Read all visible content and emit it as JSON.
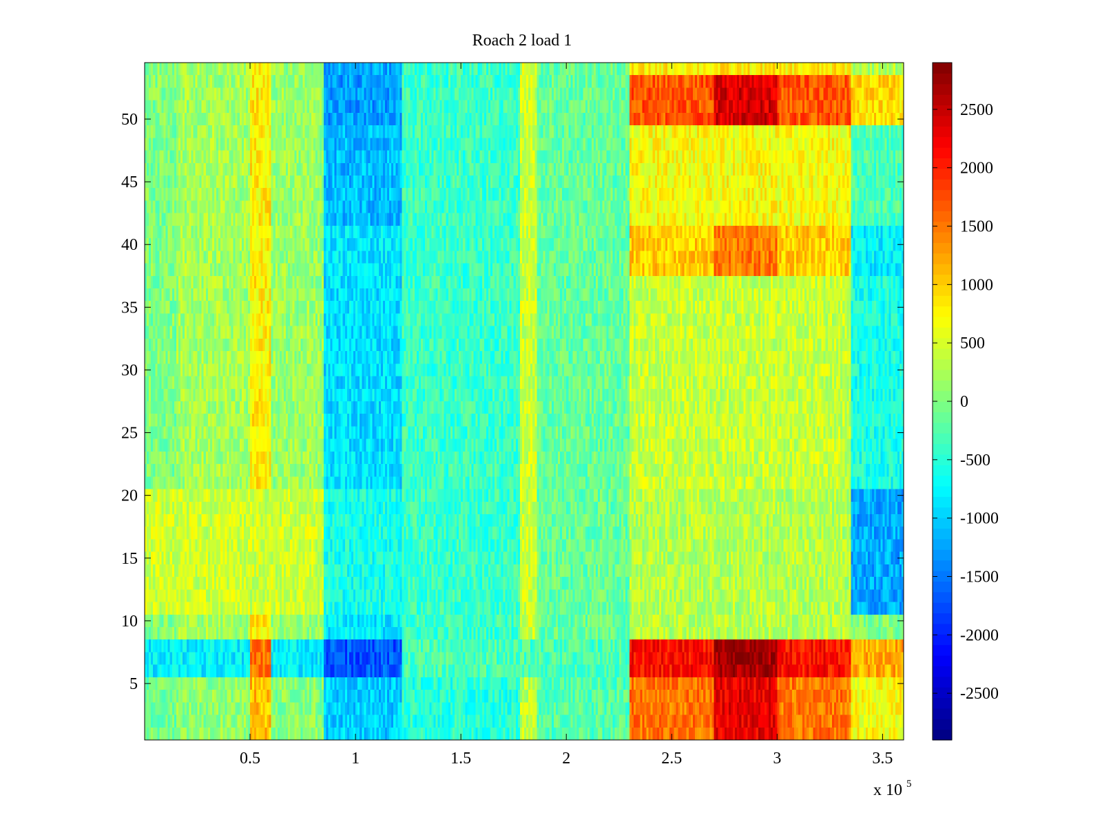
{
  "chart_data": {
    "type": "heatmap",
    "title": "Roach 2 load 1",
    "colormap": "jet",
    "x": {
      "range": [
        0,
        360000
      ],
      "ticks": [
        50000,
        100000,
        150000,
        200000,
        250000,
        300000,
        350000
      ],
      "tick_labels": [
        "0.5",
        "1",
        "1.5",
        "2",
        "2.5",
        "3",
        "3.5"
      ],
      "multiplier_base": "x 10",
      "multiplier_exponent": "5"
    },
    "y": {
      "range": [
        0.5,
        54.5
      ],
      "rows": 54,
      "ticks": [
        5,
        10,
        15,
        20,
        25,
        30,
        35,
        40,
        45,
        50
      ],
      "tick_labels": [
        "5",
        "10",
        "15",
        "20",
        "25",
        "30",
        "35",
        "40",
        "45",
        "50"
      ]
    },
    "colorbar": {
      "range": [
        -2900,
        2900
      ],
      "ticks": [
        -2500,
        -2000,
        -1500,
        -1000,
        -500,
        0,
        500,
        1000,
        1500,
        2000,
        2500
      ],
      "tick_labels": [
        "-2500",
        "-2000",
        "-1500",
        "-1000",
        "-500",
        "0",
        "500",
        "1000",
        "1500",
        "2000",
        "2500"
      ]
    },
    "column_bands": [
      {
        "x_range": [
          0,
          15000
        ],
        "base_value": 0
      },
      {
        "x_range": [
          15000,
          50000
        ],
        "base_value": 200
      },
      {
        "x_range": [
          50000,
          60000
        ],
        "base_value": 800
      },
      {
        "x_range": [
          60000,
          85000
        ],
        "base_value": 150
      },
      {
        "x_range": [
          85000,
          122000
        ],
        "base_value": -850
      },
      {
        "x_range": [
          122000,
          178000
        ],
        "base_value": -400
      },
      {
        "x_range": [
          178000,
          186000
        ],
        "base_value": 450
      },
      {
        "x_range": [
          186000,
          230000
        ],
        "base_value": -150
      },
      {
        "x_range": [
          230000,
          290000
        ],
        "base_value": 1100
      },
      {
        "x_range": [
          290000,
          335000
        ],
        "base_value": 1000
      },
      {
        "x_range": [
          335000,
          360000
        ],
        "base_value": 300
      }
    ],
    "row_bands": [
      {
        "rows": [
          1,
          5
        ],
        "profile": "low_hot"
      },
      {
        "rows": [
          6,
          8
        ],
        "profile": "strong_hot"
      },
      {
        "rows": [
          9,
          10
        ],
        "profile": "neutral"
      },
      {
        "rows": [
          11,
          20
        ],
        "profile": "right_cold"
      },
      {
        "rows": [
          21,
          37
        ],
        "profile": "mid"
      },
      {
        "rows": [
          38,
          41
        ],
        "profile": "upper_hot"
      },
      {
        "rows": [
          42,
          49
        ],
        "profile": "upper_warm"
      },
      {
        "rows": [
          50,
          53
        ],
        "profile": "top_hot"
      },
      {
        "rows": [
          54,
          54
        ],
        "profile": "top_edge"
      }
    ]
  }
}
